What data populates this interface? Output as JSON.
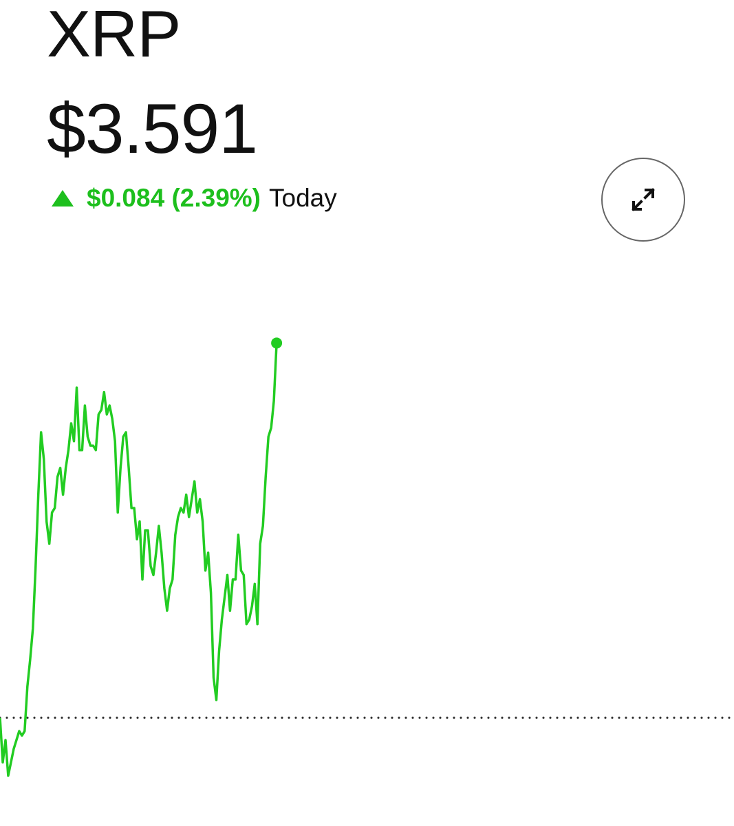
{
  "header": {
    "symbol": "XRP",
    "price": "$3.591",
    "change": "$0.084 (2.39%)",
    "period": "Today"
  },
  "chart_data": {
    "type": "line",
    "color": "#22cc22",
    "xlim": [
      0,
      268
    ],
    "ylim": [
      3.492,
      3.6
    ],
    "baseline": 3.507,
    "values": [
      3.507,
      3.497,
      3.502,
      3.494,
      3.497,
      3.5,
      3.502,
      3.504,
      3.503,
      3.504,
      3.514,
      3.52,
      3.527,
      3.541,
      3.557,
      3.571,
      3.565,
      3.551,
      3.546,
      3.553,
      3.554,
      3.561,
      3.563,
      3.557,
      3.563,
      3.567,
      3.573,
      3.569,
      3.581,
      3.567,
      3.567,
      3.577,
      3.57,
      3.568,
      3.568,
      3.567,
      3.575,
      3.576,
      3.58,
      3.575,
      3.577,
      3.574,
      3.569,
      3.553,
      3.563,
      3.57,
      3.571,
      3.563,
      3.554,
      3.554,
      3.547,
      3.551,
      3.538,
      3.549,
      3.549,
      3.541,
      3.539,
      3.544,
      3.55,
      3.544,
      3.536,
      3.531,
      3.536,
      3.538,
      3.548,
      3.552,
      3.554,
      3.553,
      3.557,
      3.552,
      3.556,
      3.56,
      3.553,
      3.556,
      3.551,
      3.54,
      3.544,
      3.535,
      3.516,
      3.511,
      3.522,
      3.529,
      3.534,
      3.539,
      3.531,
      3.538,
      3.538,
      3.548,
      3.54,
      3.539,
      3.528,
      3.529,
      3.532,
      3.537,
      3.528,
      3.546,
      3.55,
      3.561,
      3.57,
      3.572,
      3.578,
      3.591
    ]
  }
}
